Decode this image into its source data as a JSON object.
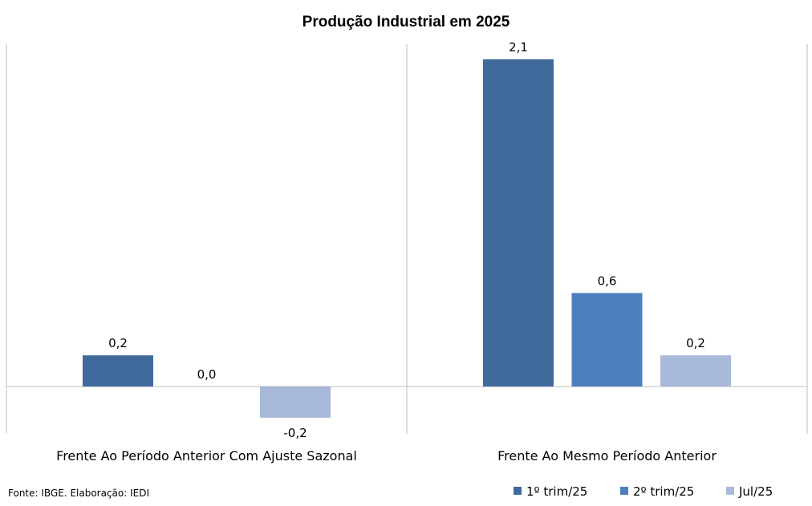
{
  "chart_data": {
    "type": "bar",
    "title": "Produção Industrial em 2025",
    "categories": [
      "Frente Ao Período Anterior Com Ajuste Sazonal",
      "Frente Ao Mesmo Período Anterior"
    ],
    "series": [
      {
        "name": "1º trim/25",
        "values": [
          0.2,
          2.1
        ],
        "labels": [
          "0,2",
          "2,1"
        ],
        "color": "#416A9C"
      },
      {
        "name": "2º trim/25",
        "values": [
          0.0,
          0.6
        ],
        "labels": [
          "0,0",
          "0,6"
        ],
        "color": "#4D7EBD"
      },
      {
        "name": "Jul/25",
        "values": [
          -0.2,
          0.2
        ],
        "labels": [
          "-0,2",
          "0,2"
        ],
        "color": "#A8B9D9"
      }
    ],
    "grid": false,
    "legend": "bottom-right"
  },
  "source": "Fonte: IBGE. Elaboração: IEDI"
}
